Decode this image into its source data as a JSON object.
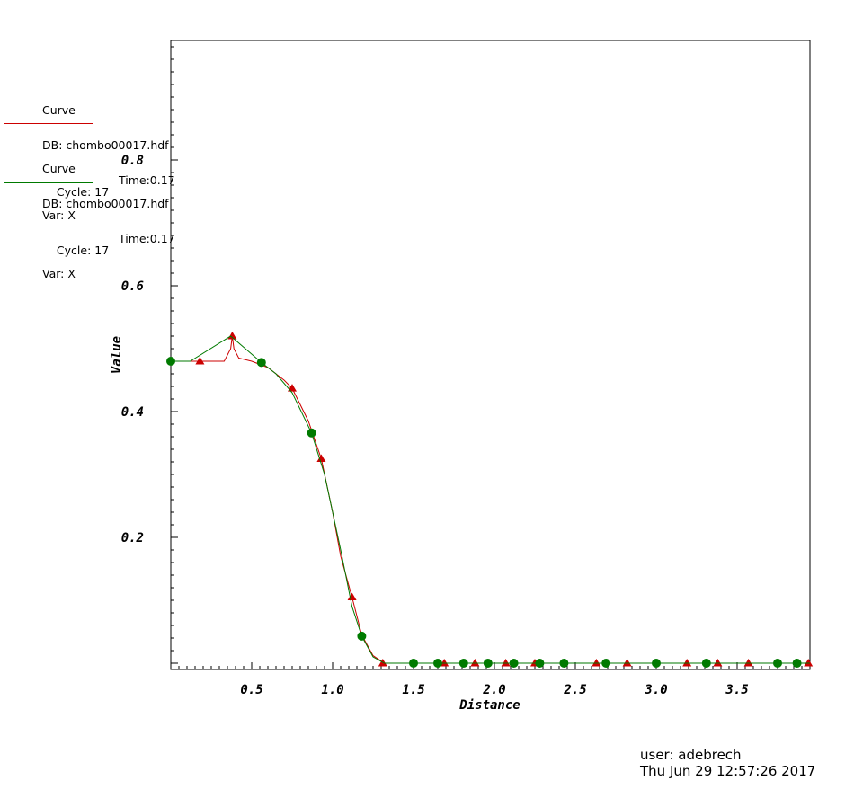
{
  "legend": [
    {
      "title": "Curve",
      "db": "DB: chombo00017.hdf",
      "cycle": "Cycle: 17",
      "time": "Time:0.17",
      "var": "Var: X",
      "color": "#cc0000"
    },
    {
      "title": "Curve",
      "db": "DB: chombo00017.hdf",
      "cycle": "Cycle: 17",
      "time": "Time:0.17",
      "var": "Var: X",
      "color": "#007a00"
    }
  ],
  "footer": {
    "user": "user: adebrech",
    "datetime": "Thu Jun 29 12:57:26 2017"
  },
  "chart_data": {
    "type": "line",
    "title": "",
    "xlabel": "Distance",
    "ylabel": "Value",
    "xlim": [
      0.0,
      3.95
    ],
    "ylim": [
      -0.01,
      0.99
    ],
    "x_tick_labels": [
      "0.5",
      "1.0",
      "1.5",
      "2.0",
      "2.5",
      "3.0",
      "3.5"
    ],
    "x_tick_values": [
      0.5,
      1.0,
      1.5,
      2.0,
      2.5,
      3.0,
      3.5
    ],
    "y_tick_labels": [
      "0.2",
      "0.4",
      "0.6",
      "0.8"
    ],
    "y_tick_values": [
      0.2,
      0.4,
      0.6,
      0.8
    ],
    "grid": false,
    "series": [
      {
        "color": "#cc0000",
        "marker": "triangle",
        "line": [
          [
            0.0,
            0.48
          ],
          [
            0.18,
            0.48
          ],
          [
            0.33,
            0.48
          ],
          [
            0.37,
            0.5
          ],
          [
            0.38,
            0.52
          ],
          [
            0.39,
            0.5
          ],
          [
            0.42,
            0.485
          ],
          [
            0.5,
            0.48
          ],
          [
            0.6,
            0.47
          ],
          [
            0.7,
            0.45
          ],
          [
            0.75,
            0.437
          ],
          [
            0.85,
            0.385
          ],
          [
            0.93,
            0.325
          ],
          [
            1.0,
            0.24
          ],
          [
            1.05,
            0.17
          ],
          [
            1.12,
            0.105
          ],
          [
            1.18,
            0.045
          ],
          [
            1.25,
            0.012
          ],
          [
            1.32,
            0.0
          ],
          [
            1.5,
            0.0
          ],
          [
            2.0,
            0.0
          ],
          [
            2.5,
            0.0
          ],
          [
            3.0,
            0.0
          ],
          [
            3.5,
            0.0
          ],
          [
            3.95,
            0.0
          ]
        ],
        "markers": [
          [
            0.18,
            0.48
          ],
          [
            0.38,
            0.52
          ],
          [
            0.75,
            0.437
          ],
          [
            0.93,
            0.325
          ],
          [
            1.12,
            0.105
          ],
          [
            1.31,
            0.0
          ],
          [
            1.69,
            0.0
          ],
          [
            1.88,
            0.0
          ],
          [
            2.07,
            0.0
          ],
          [
            2.25,
            0.0
          ],
          [
            2.63,
            0.0
          ],
          [
            2.82,
            0.0
          ],
          [
            3.19,
            0.0
          ],
          [
            3.38,
            0.0
          ],
          [
            3.57,
            0.0
          ],
          [
            3.94,
            0.0
          ]
        ]
      },
      {
        "color": "#007a00",
        "marker": "circle",
        "line": [
          [
            0.0,
            0.48
          ],
          [
            0.12,
            0.48
          ],
          [
            0.37,
            0.52
          ],
          [
            0.56,
            0.478
          ],
          [
            0.65,
            0.46
          ],
          [
            0.75,
            0.43
          ],
          [
            0.87,
            0.366
          ],
          [
            0.95,
            0.3
          ],
          [
            1.05,
            0.18
          ],
          [
            1.12,
            0.09
          ],
          [
            1.18,
            0.043
          ],
          [
            1.25,
            0.01
          ],
          [
            1.32,
            0.0
          ],
          [
            1.5,
            0.0
          ],
          [
            2.0,
            0.0
          ],
          [
            2.5,
            0.0
          ],
          [
            3.0,
            0.0
          ],
          [
            3.5,
            0.0
          ],
          [
            3.95,
            0.0
          ]
        ],
        "markers": [
          [
            0.0,
            0.48
          ],
          [
            0.56,
            0.478
          ],
          [
            0.87,
            0.366
          ],
          [
            1.18,
            0.043
          ],
          [
            1.5,
            0.0
          ],
          [
            1.65,
            0.0
          ],
          [
            1.81,
            0.0
          ],
          [
            1.96,
            0.0
          ],
          [
            2.12,
            0.0
          ],
          [
            2.28,
            0.0
          ],
          [
            2.43,
            0.0
          ],
          [
            2.69,
            0.0
          ],
          [
            3.0,
            0.0
          ],
          [
            3.31,
            0.0
          ],
          [
            3.75,
            0.0
          ],
          [
            3.87,
            0.0
          ]
        ]
      }
    ]
  }
}
